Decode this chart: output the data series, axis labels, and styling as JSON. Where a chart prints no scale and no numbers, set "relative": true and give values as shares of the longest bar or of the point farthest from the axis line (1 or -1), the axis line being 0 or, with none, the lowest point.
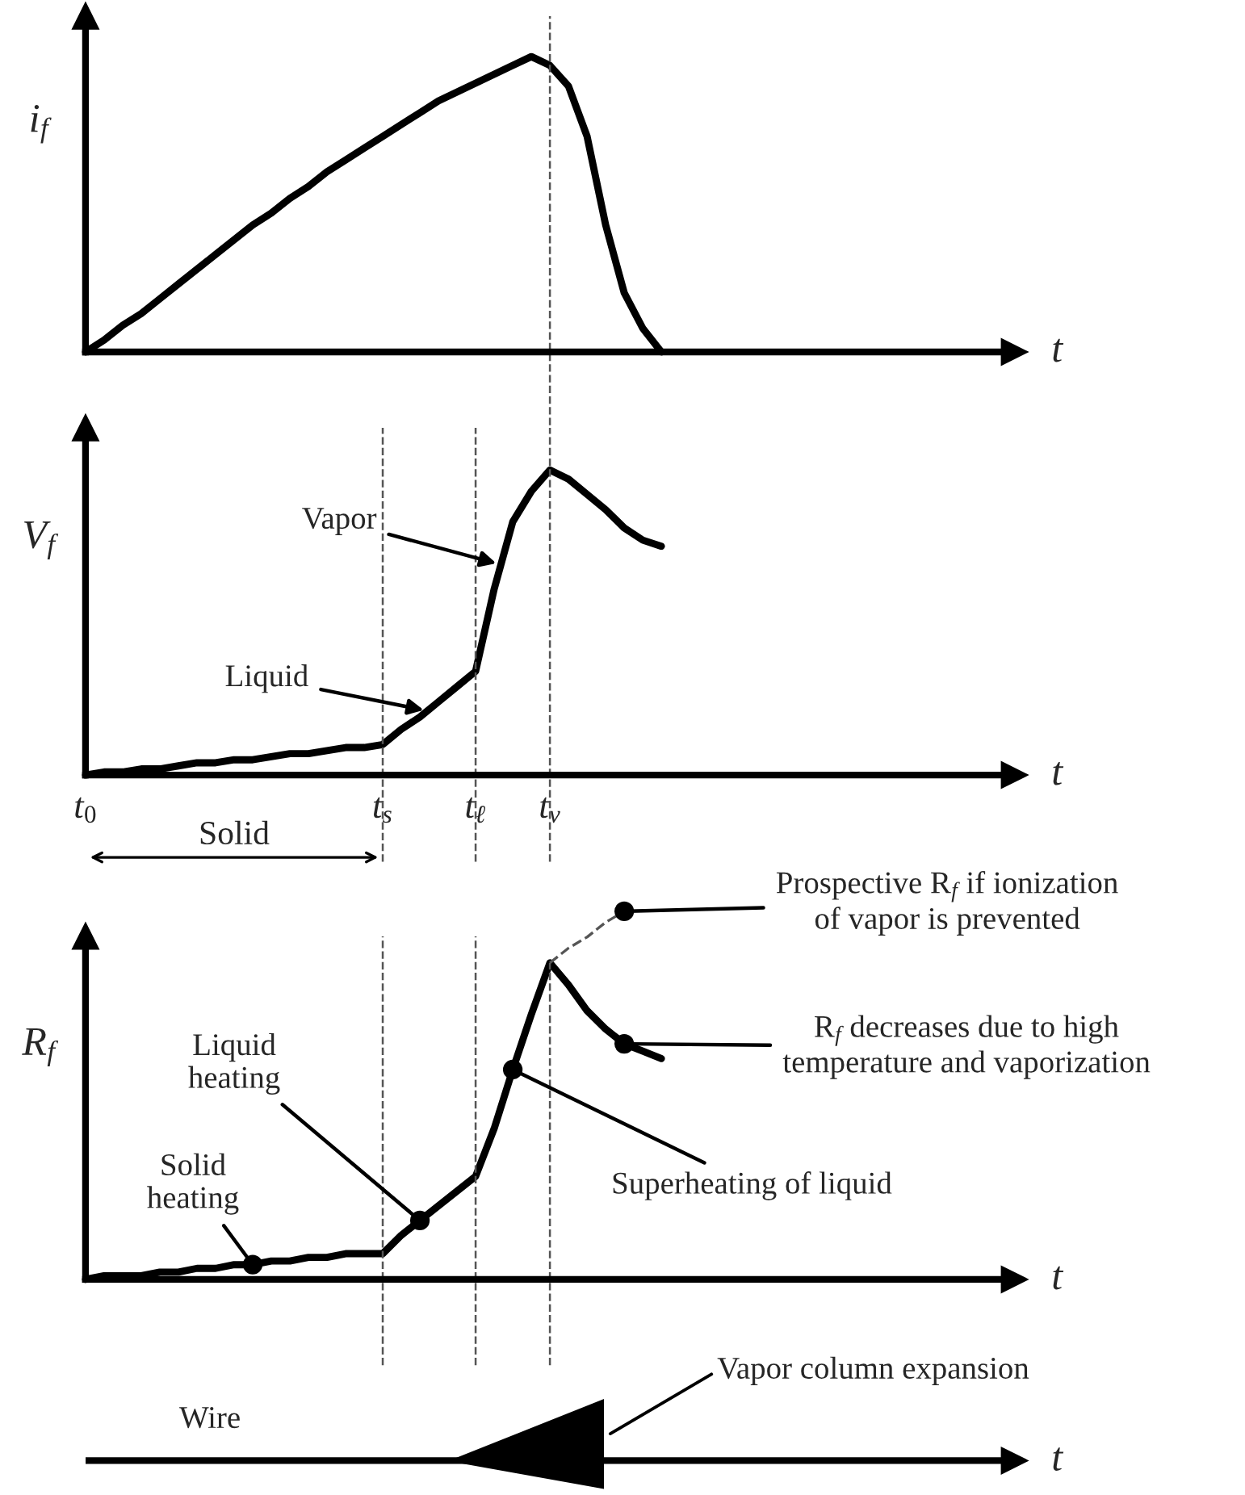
{
  "chart_data": [
    {
      "type": "line",
      "relative": true,
      "ylabel": "i$_{f}$",
      "xlabel": "t",
      "tick_labels": false,
      "categories": [
        "t$_{0}$",
        null,
        null,
        null,
        null,
        null,
        null,
        null,
        null,
        null,
        null,
        null,
        null,
        null,
        null,
        null,
        "t$_{s}$",
        null,
        null,
        null,
        null,
        "t$_{ℓ}$",
        null,
        null,
        null,
        "t$_{v}$",
        null,
        null,
        null,
        null,
        null,
        null,
        null,
        null,
        null,
        null,
        null,
        null,
        null,
        null,
        null,
        null,
        null,
        null,
        null,
        null,
        null,
        null,
        null,
        null,
        null
      ],
      "series": [
        {
          "color": "#000000",
          "values": [
            0,
            0.04,
            0.09,
            0.13,
            0.18,
            0.23,
            0.28,
            0.33,
            0.38,
            0.43,
            0.47,
            0.52,
            0.56,
            0.61,
            0.65,
            0.69,
            0.73,
            0.77,
            0.81,
            0.85,
            0.88,
            0.91,
            0.94,
            0.97,
            1.0,
            0.97,
            0.9,
            0.73,
            0.43,
            0.2,
            0.08,
            0,
            null,
            null,
            null,
            null,
            null,
            null,
            null,
            null,
            null,
            null,
            null,
            null,
            null,
            null,
            null,
            null,
            null,
            null,
            null
          ]
        }
      ],
      "ref_lines": [
        {
          "axis": "x",
          "value": "t$_{v}$",
          "label": null,
          "color": "#555555",
          "line_style": "dashed"
        }
      ]
    },
    {
      "type": "line",
      "relative": true,
      "ylabel": "V$_{f}$",
      "xlabel": "t",
      "tick_labels": "x",
      "categories": [
        "t$_{0}$",
        null,
        null,
        null,
        null,
        null,
        null,
        null,
        null,
        null,
        null,
        null,
        null,
        null,
        null,
        null,
        "t$_{s}$",
        null,
        null,
        null,
        null,
        "t$_{ℓ}$",
        null,
        null,
        null,
        "t$_{v}$",
        null,
        null,
        null,
        null,
        null,
        null,
        null,
        null,
        null,
        null,
        null,
        null,
        null,
        null,
        null,
        null,
        null,
        null,
        null,
        null,
        null,
        null,
        null,
        null,
        null
      ],
      "series": [
        {
          "color": "#000000",
          "values": [
            0,
            0.01,
            0.01,
            0.02,
            0.02,
            0.03,
            0.04,
            0.04,
            0.05,
            0.05,
            0.06,
            0.07,
            0.07,
            0.08,
            0.09,
            0.09,
            0.1,
            0.15,
            0.19,
            0.24,
            0.29,
            0.34,
            0.61,
            0.83,
            0.93,
            1.0,
            0.97,
            0.92,
            0.87,
            0.81,
            0.77,
            0.75,
            null,
            null,
            null,
            null,
            null,
            null,
            null,
            null,
            null,
            null,
            null,
            null,
            null,
            null,
            null,
            null,
            null,
            null,
            null
          ]
        }
      ],
      "ref_lines": [
        {
          "axis": "x",
          "value": "t$_{s}$",
          "label": null,
          "color": "#555555",
          "line_style": "dashed"
        },
        {
          "axis": "x",
          "value": "t$_{ℓ}$",
          "label": null,
          "color": "#555555",
          "line_style": "dashed"
        },
        {
          "axis": "x",
          "value": "t$_{v}$",
          "label": null,
          "color": "#555555",
          "line_style": "dashed"
        }
      ],
      "annotations": [
        "Vapor",
        "Liquid",
        "Solid"
      ]
    },
    {
      "type": "line",
      "relative": true,
      "ylabel": "R$_{f}$",
      "xlabel": "t",
      "tick_labels": false,
      "categories": [
        "t$_{0}$",
        null,
        null,
        null,
        null,
        null,
        null,
        null,
        null,
        null,
        null,
        null,
        null,
        null,
        null,
        null,
        "t$_{s}$",
        null,
        null,
        null,
        null,
        "t$_{ℓ}$",
        null,
        null,
        null,
        "t$_{v}$",
        null,
        null,
        null,
        null,
        null,
        null,
        null,
        null,
        null,
        null,
        null,
        null,
        null,
        null,
        null,
        null,
        null,
        null,
        null,
        null,
        null,
        null,
        null,
        null,
        null
      ],
      "series": [
        {
          "color": "#000000",
          "values": [
            0,
            0.01,
            0.01,
            0.01,
            0.02,
            0.02,
            0.03,
            0.03,
            0.04,
            0.04,
            0.05,
            0.05,
            0.06,
            0.06,
            0.07,
            0.07,
            0.07,
            0.12,
            0.16,
            0.2,
            0.24,
            0.28,
            0.41,
            0.57,
            0.72,
            0.86,
            0.8,
            0.73,
            0.68,
            0.64,
            0.62,
            0.6,
            null,
            null,
            null,
            null,
            null,
            null,
            null,
            null,
            null,
            null,
            null,
            null,
            null,
            null,
            null,
            null,
            null,
            null,
            null
          ]
        },
        {
          "color": "#555555",
          "line_style": "dashed",
          "values": [
            null,
            null,
            null,
            null,
            null,
            null,
            null,
            null,
            null,
            null,
            null,
            null,
            null,
            null,
            null,
            null,
            null,
            null,
            null,
            null,
            null,
            null,
            null,
            null,
            null,
            0.86,
            0.9,
            0.93,
            0.97,
            1.0,
            null,
            null,
            null,
            null,
            null,
            null,
            null,
            null,
            null,
            null,
            null,
            null,
            null,
            null,
            null,
            null,
            null,
            null,
            null,
            null,
            null
          ]
        },
        {
          "type": "scatter",
          "marker": "circle",
          "color": "#000000",
          "values": [
            null,
            null,
            null,
            null,
            null,
            null,
            null,
            null,
            null,
            0.04,
            null,
            null,
            null,
            null,
            null,
            null,
            null,
            null,
            0.16,
            null,
            null,
            null,
            null,
            0.57,
            null,
            null,
            null,
            null,
            null,
            0.64,
            null,
            null,
            null,
            null,
            null,
            null,
            null,
            null,
            null,
            null,
            null,
            null,
            null,
            null,
            null,
            null,
            null,
            null,
            null,
            null,
            null
          ]
        },
        {
          "type": "scatter",
          "marker": "circle",
          "color": "#000000",
          "values": [
            null,
            null,
            null,
            null,
            null,
            null,
            null,
            null,
            null,
            null,
            null,
            null,
            null,
            null,
            null,
            null,
            null,
            null,
            null,
            null,
            null,
            null,
            null,
            null,
            null,
            null,
            null,
            null,
            null,
            1.0,
            null,
            null,
            null,
            null,
            null,
            null,
            null,
            null,
            null,
            null,
            null,
            null,
            null,
            null,
            null,
            null,
            null,
            null,
            null,
            null,
            null
          ]
        }
      ],
      "ref_lines": [
        {
          "axis": "x",
          "value": "t$_{s}$",
          "label": null,
          "color": "#555555",
          "line_style": "dashed"
        },
        {
          "axis": "x",
          "value": "t$_{ℓ}$",
          "label": null,
          "color": "#555555",
          "line_style": "dashed"
        },
        {
          "axis": "x",
          "value": "t$_{v}$",
          "label": null,
          "color": "#555555",
          "line_style": "dashed"
        }
      ],
      "annotations": [
        "Solid\nheating",
        "Liquid\nheating",
        "Superheating of liquid",
        "Prospective R$_{f}$ if ionization\nof vapor is prevented",
        "R$_{f}$ decreases due to high\ntemperature and vaporization"
      ]
    },
    {
      "type": "other",
      "xlabel": "t",
      "annotations": [
        "Wire",
        "Vapor column expansion"
      ]
    }
  ]
}
